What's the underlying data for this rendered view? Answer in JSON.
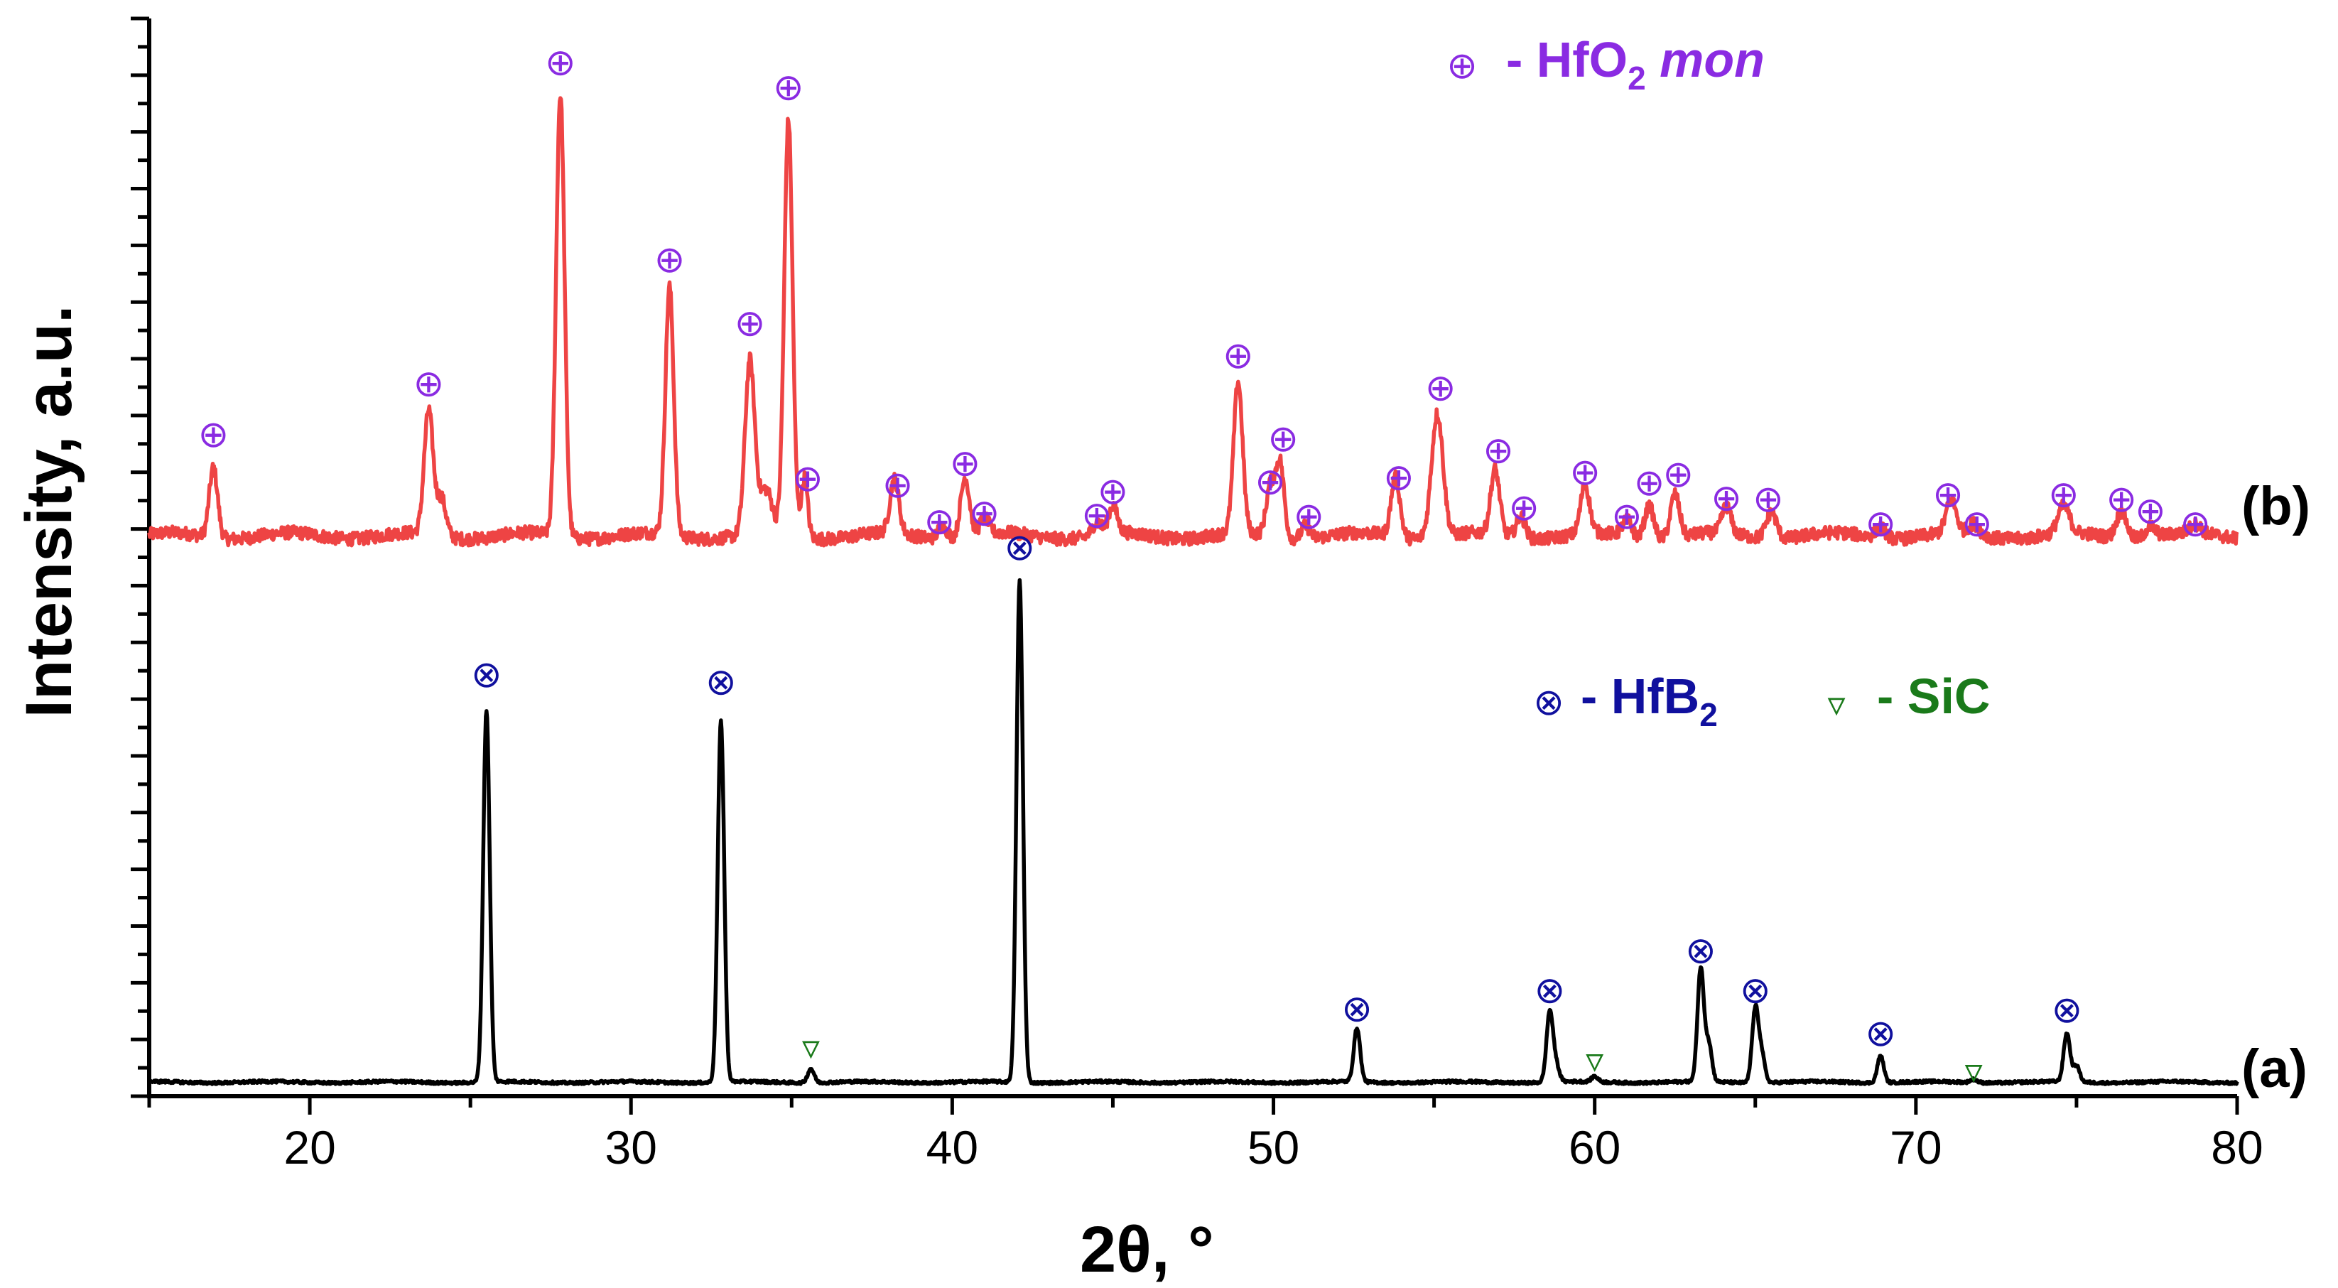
{
  "chart_data": {
    "type": "line",
    "title": "",
    "xlabel": "2θ, °",
    "ylabel": "Intensity, a.u.",
    "xlim": [
      15,
      80
    ],
    "ylim": [
      0,
      100
    ],
    "x_ticks": [
      "20",
      "30",
      "40",
      "50",
      "60",
      "70",
      "80"
    ],
    "y_tick_labels": "none (arbitrary units)",
    "legend": [
      {
        "symbol": "⊕",
        "text": "- HfO",
        "sub": "2",
        "italic": "mon",
        "color": "#8a2be2",
        "placement": "top-right, above trace b"
      },
      {
        "symbol": "⊗",
        "text": "- HfB",
        "sub": "2",
        "color": "#10109e",
        "placement": "middle-right"
      },
      {
        "symbol": "▿",
        "text": "- SiC",
        "color": "#1a7a1a",
        "placement": "middle-right"
      }
    ],
    "series": [
      {
        "name": "(b)",
        "color": "#ee4444",
        "baseline": 52,
        "noise": 1.2,
        "peaks": [
          {
            "pos": 17.0,
            "height": 6.5,
            "width": 0.13
          },
          {
            "pos": 23.7,
            "height": 11.5,
            "width": 0.14
          },
          {
            "pos": 24.1,
            "height": 3.5,
            "width": 0.14
          },
          {
            "pos": 27.8,
            "height": 41.0,
            "width": 0.13
          },
          {
            "pos": 31.2,
            "height": 23.0,
            "width": 0.13
          },
          {
            "pos": 33.7,
            "height": 16.0,
            "width": 0.15
          },
          {
            "pos": 34.2,
            "height": 4.0,
            "width": 0.2
          },
          {
            "pos": 34.9,
            "height": 38.5,
            "width": 0.13
          },
          {
            "pos": 35.4,
            "height": 5.5,
            "width": 0.1
          },
          {
            "pos": 38.2,
            "height": 5.0,
            "width": 0.14
          },
          {
            "pos": 39.7,
            "height": 1.2,
            "width": 0.14
          },
          {
            "pos": 40.4,
            "height": 5.5,
            "width": 0.14
          },
          {
            "pos": 41.0,
            "height": 1.5,
            "width": 0.14
          },
          {
            "pos": 44.5,
            "height": 1.2,
            "width": 0.14
          },
          {
            "pos": 45.0,
            "height": 2.5,
            "width": 0.14
          },
          {
            "pos": 48.9,
            "height": 14.0,
            "width": 0.14
          },
          {
            "pos": 49.9,
            "height": 4.5,
            "width": 0.13
          },
          {
            "pos": 50.2,
            "height": 7.0,
            "width": 0.13
          },
          {
            "pos": 51.0,
            "height": 1.2,
            "width": 0.13
          },
          {
            "pos": 53.8,
            "height": 5.5,
            "width": 0.14
          },
          {
            "pos": 55.1,
            "height": 11.5,
            "width": 0.18
          },
          {
            "pos": 56.9,
            "height": 6.0,
            "width": 0.14
          },
          {
            "pos": 57.7,
            "height": 2.0,
            "width": 0.14
          },
          {
            "pos": 59.7,
            "height": 4.5,
            "width": 0.14
          },
          {
            "pos": 61.0,
            "height": 1.5,
            "width": 0.14
          },
          {
            "pos": 61.7,
            "height": 3.0,
            "width": 0.14
          },
          {
            "pos": 62.5,
            "height": 4.0,
            "width": 0.14
          },
          {
            "pos": 64.1,
            "height": 2.5,
            "width": 0.14
          },
          {
            "pos": 65.5,
            "height": 2.5,
            "width": 0.16
          },
          {
            "pos": 68.9,
            "height": 1.0,
            "width": 0.16
          },
          {
            "pos": 71.1,
            "height": 3.0,
            "width": 0.16
          },
          {
            "pos": 71.8,
            "height": 1.0,
            "width": 0.16
          },
          {
            "pos": 74.6,
            "height": 2.5,
            "width": 0.18
          },
          {
            "pos": 76.4,
            "height": 2.5,
            "width": 0.16
          },
          {
            "pos": 77.3,
            "height": 1.0,
            "width": 0.16
          },
          {
            "pos": 78.7,
            "height": 0.8,
            "width": 0.16
          }
        ],
        "markers": [
          {
            "x": 17.0,
            "y": 61.5
          },
          {
            "x": 23.7,
            "y": 66.2
          },
          {
            "x": 27.8,
            "y": 96.0
          },
          {
            "x": 31.2,
            "y": 77.7
          },
          {
            "x": 33.7,
            "y": 71.8
          },
          {
            "x": 34.9,
            "y": 93.7
          },
          {
            "x": 35.5,
            "y": 57.4
          },
          {
            "x": 38.3,
            "y": 56.8
          },
          {
            "x": 39.6,
            "y": 53.4
          },
          {
            "x": 40.4,
            "y": 58.8
          },
          {
            "x": 41.0,
            "y": 54.2
          },
          {
            "x": 44.5,
            "y": 54.0
          },
          {
            "x": 45.0,
            "y": 56.2
          },
          {
            "x": 48.9,
            "y": 68.8
          },
          {
            "x": 49.9,
            "y": 57.1
          },
          {
            "x": 50.3,
            "y": 61.1
          },
          {
            "x": 51.1,
            "y": 53.9
          },
          {
            "x": 53.9,
            "y": 57.5
          },
          {
            "x": 55.2,
            "y": 65.8
          },
          {
            "x": 57.0,
            "y": 60.0
          },
          {
            "x": 57.8,
            "y": 54.7
          },
          {
            "x": 59.7,
            "y": 58.0
          },
          {
            "x": 61.0,
            "y": 53.9
          },
          {
            "x": 61.7,
            "y": 57.0
          },
          {
            "x": 62.6,
            "y": 57.8
          },
          {
            "x": 64.1,
            "y": 55.6
          },
          {
            "x": 65.4,
            "y": 55.5
          },
          {
            "x": 68.9,
            "y": 53.2
          },
          {
            "x": 71.0,
            "y": 55.9
          },
          {
            "x": 71.9,
            "y": 53.2
          },
          {
            "x": 74.6,
            "y": 55.9
          },
          {
            "x": 76.4,
            "y": 55.5
          },
          {
            "x": 77.3,
            "y": 54.4
          },
          {
            "x": 78.7,
            "y": 53.2
          }
        ]
      },
      {
        "name": "(a)",
        "color": "#000000",
        "baseline": 1.3,
        "noise": 0.25,
        "peaks": [
          {
            "pos": 25.5,
            "height": 34.5,
            "width": 0.1
          },
          {
            "pos": 32.8,
            "height": 33.5,
            "width": 0.1
          },
          {
            "pos": 35.6,
            "height": 1.3,
            "width": 0.1
          },
          {
            "pos": 42.1,
            "height": 46.5,
            "width": 0.1
          },
          {
            "pos": 52.6,
            "height": 5.0,
            "width": 0.1
          },
          {
            "pos": 58.6,
            "height": 6.5,
            "width": 0.1
          },
          {
            "pos": 58.8,
            "height": 1.5,
            "width": 0.1
          },
          {
            "pos": 60.0,
            "height": 0.5,
            "width": 0.1
          },
          {
            "pos": 63.3,
            "height": 10.5,
            "width": 0.1
          },
          {
            "pos": 63.55,
            "height": 3.5,
            "width": 0.1
          },
          {
            "pos": 65.0,
            "height": 6.8,
            "width": 0.1
          },
          {
            "pos": 65.2,
            "height": 2.5,
            "width": 0.1
          },
          {
            "pos": 68.9,
            "height": 2.5,
            "width": 0.1
          },
          {
            "pos": 71.8,
            "height": 0.3,
            "width": 0.1
          },
          {
            "pos": 74.7,
            "height": 4.5,
            "width": 0.1
          },
          {
            "pos": 75.0,
            "height": 1.5,
            "width": 0.1
          }
        ],
        "markers_hfb2": [
          {
            "x": 25.5,
            "y": 39.2
          },
          {
            "x": 32.8,
            "y": 38.5
          },
          {
            "x": 42.1,
            "y": 51.0
          },
          {
            "x": 52.6,
            "y": 8.2
          },
          {
            "x": 58.6,
            "y": 9.9
          },
          {
            "x": 63.3,
            "y": 13.6
          },
          {
            "x": 65.0,
            "y": 9.9
          },
          {
            "x": 68.9,
            "y": 5.9
          },
          {
            "x": 74.7,
            "y": 8.1
          }
        ],
        "markers_sic": [
          {
            "x": 35.6,
            "y": 4.6
          },
          {
            "x": 60.0,
            "y": 3.4
          },
          {
            "x": 71.8,
            "y": 2.4
          }
        ]
      }
    ]
  }
}
